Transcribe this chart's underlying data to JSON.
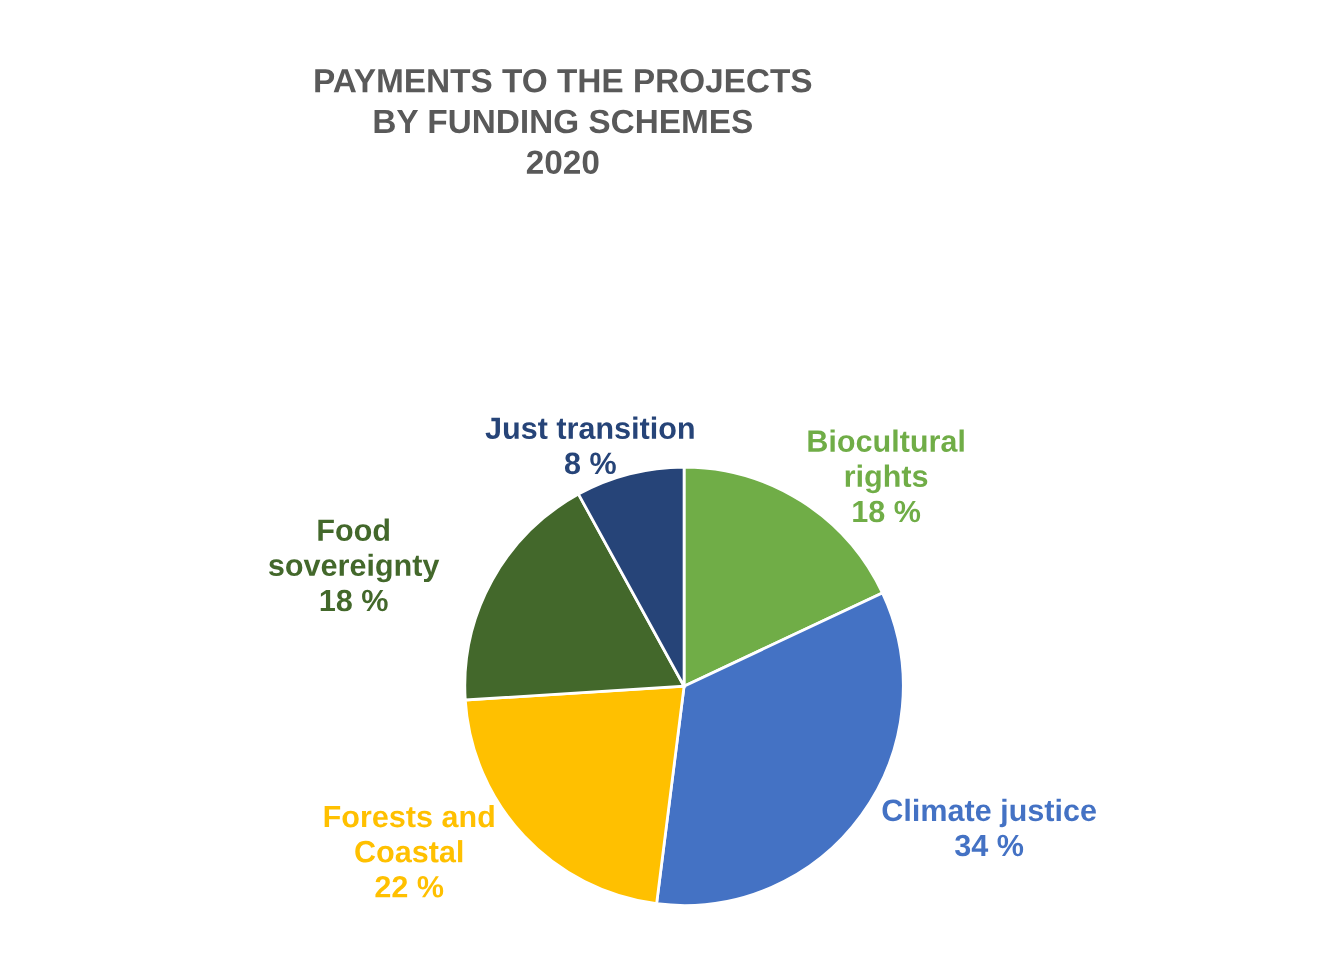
{
  "chart_data": {
    "type": "pie",
    "title": "PAYMENTS TO THE PROJECTS\nBY FUNDING SCHEMES\n2020",
    "categories": [
      "Biocultural\nrights",
      "Climate justice",
      "Forests and\nCoastal",
      "Food\nsovereignty",
      "Just transition"
    ],
    "values": [
      18,
      34,
      22,
      18,
      8
    ],
    "value_labels": [
      "18 %",
      "34 %",
      "22 %",
      "18 %",
      "8 %"
    ],
    "colors": [
      "#70ad47",
      "#4472c4",
      "#ffc000",
      "#43682b",
      "#264478"
    ],
    "legend": false
  }
}
